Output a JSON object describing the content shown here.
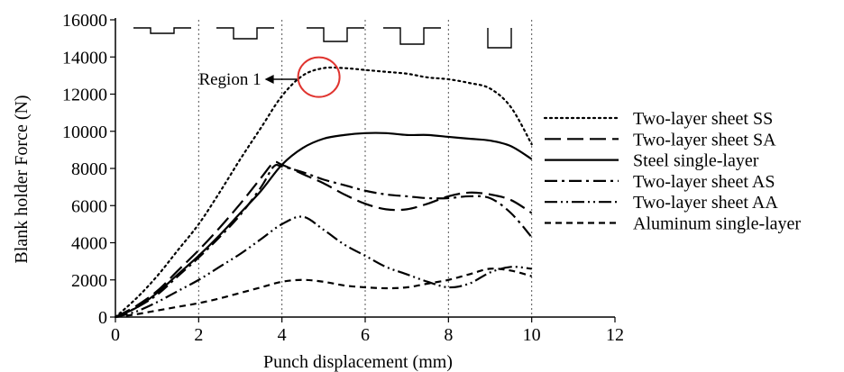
{
  "chart_data": {
    "type": "line",
    "xlabel": "Punch displacement  (mm)",
    "ylabel": "Blank holder Force (N)",
    "xlim": [
      0,
      12
    ],
    "ylim": [
      0,
      16000
    ],
    "x_ticks": [
      0,
      2,
      4,
      6,
      8,
      10,
      12
    ],
    "y_ticks": [
      0,
      2000,
      4000,
      6000,
      8000,
      10000,
      12000,
      14000,
      16000
    ],
    "grid": "vertical dotted at x = 2, 4, 6, 8, 10",
    "legend_position": "right",
    "annotation": {
      "text": "Region 1",
      "x": 4.8,
      "y": 13400
    },
    "series": [
      {
        "name": "Two-layer sheet SS",
        "x": [
          0,
          0.5,
          1,
          1.5,
          2,
          2.5,
          3,
          3.5,
          4,
          4.5,
          5,
          5.5,
          6,
          6.5,
          7,
          7.5,
          8,
          8.5,
          9,
          9.5,
          10
        ],
        "y": [
          0,
          1000,
          2200,
          3600,
          5000,
          6700,
          8500,
          10200,
          11900,
          13000,
          13400,
          13400,
          13300,
          13200,
          13100,
          12900,
          12800,
          12600,
          12300,
          11300,
          9300
        ]
      },
      {
        "name": "Two-layer sheet SA",
        "x": [
          0,
          0.5,
          1,
          1.5,
          2,
          2.5,
          3,
          3.5,
          3.8,
          4,
          4.5,
          5,
          5.5,
          6,
          6.5,
          7,
          7.5,
          8,
          8.5,
          9,
          9.5,
          10
        ],
        "y": [
          0,
          600,
          1400,
          2500,
          3600,
          4800,
          6100,
          7500,
          8300,
          8200,
          7700,
          7200,
          6600,
          6100,
          5800,
          5800,
          6100,
          6500,
          6700,
          6600,
          6300,
          5600
        ]
      },
      {
        "name": "Steel single-layer",
        "x": [
          0,
          0.5,
          1,
          1.5,
          2,
          2.5,
          3,
          3.5,
          4,
          4.5,
          5,
          5.5,
          6,
          6.5,
          7,
          7.5,
          8,
          8.5,
          9,
          9.5,
          10
        ],
        "y": [
          0,
          500,
          1300,
          2300,
          3300,
          4400,
          5600,
          6800,
          8200,
          9100,
          9600,
          9800,
          9900,
          9900,
          9800,
          9800,
          9700,
          9600,
          9500,
          9200,
          8500
        ]
      },
      {
        "name": "Two-layer sheet AS",
        "x": [
          0,
          0.5,
          1,
          1.5,
          2,
          2.5,
          3,
          3.5,
          3.8,
          4,
          4.5,
          5,
          5.5,
          6,
          6.5,
          7,
          7.5,
          8,
          8.5,
          9,
          9.5,
          10
        ],
        "y": [
          0,
          500,
          1200,
          2200,
          3200,
          4300,
          5500,
          7000,
          8100,
          8100,
          7800,
          7400,
          7100,
          6800,
          6600,
          6500,
          6400,
          6400,
          6500,
          6400,
          5600,
          4300
        ]
      },
      {
        "name": "Two-layer sheet AA",
        "x": [
          0,
          0.5,
          1,
          1.5,
          2,
          2.5,
          3,
          3.5,
          4,
          4.5,
          5,
          5.5,
          6,
          6.5,
          7,
          7.5,
          8,
          8.5,
          9,
          9.5,
          10
        ],
        "y": [
          0,
          300,
          800,
          1400,
          2000,
          2700,
          3400,
          4200,
          5000,
          5400,
          4700,
          3900,
          3300,
          2700,
          2300,
          1900,
          1600,
          1800,
          2400,
          2700,
          2600
        ]
      },
      {
        "name": "Aluminum single-layer",
        "x": [
          0,
          0.5,
          1,
          1.5,
          2,
          2.5,
          3,
          3.5,
          4,
          4.5,
          5,
          5.5,
          6,
          6.5,
          7,
          7.5,
          8,
          8.5,
          9,
          9.5,
          10
        ],
        "y": [
          0,
          150,
          350,
          550,
          750,
          1000,
          1300,
          1600,
          1900,
          2000,
          1900,
          1700,
          1600,
          1550,
          1600,
          1800,
          2000,
          2300,
          2600,
          2500,
          2200
        ]
      }
    ]
  }
}
